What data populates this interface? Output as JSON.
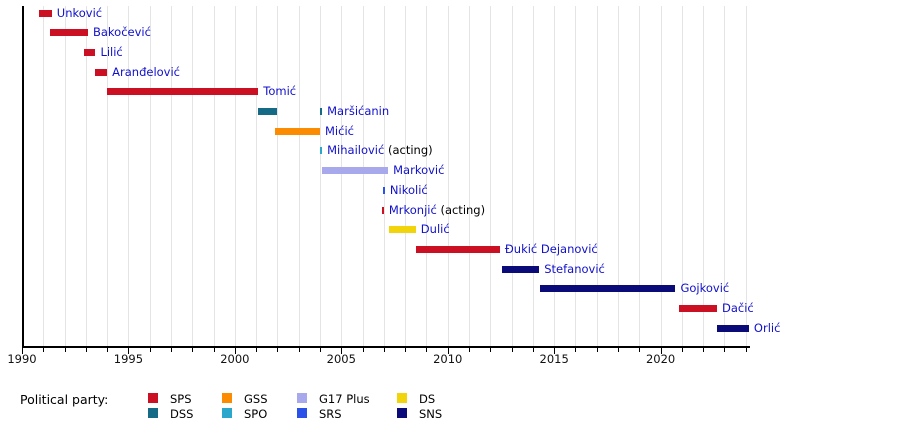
{
  "chart_data": {
    "type": "bar",
    "variant": "horizontal-timeline-gantt",
    "title": "",
    "xlabel": "",
    "ylabel": "",
    "xlim": [
      1990,
      2024.2
    ],
    "xticks_major": [
      1990,
      1995,
      2000,
      2005,
      2010,
      2015,
      2020
    ],
    "xtick_minor_step": 1,
    "grid": "vertical yearly light-gray lines",
    "legend_position": "bottom",
    "rows": [
      {
        "name": "Unković",
        "party": "SPS",
        "segments": [
          [
            1990.8,
            1991.4
          ]
        ]
      },
      {
        "name": "Bakočević",
        "party": "SPS",
        "segments": [
          [
            1991.3,
            1993.1
          ]
        ]
      },
      {
        "name": "Lilić",
        "party": "SPS",
        "segments": [
          [
            1992.9,
            1993.45
          ]
        ]
      },
      {
        "name": "Aranđelović",
        "party": "SPS",
        "segments": [
          [
            1993.45,
            1994.0
          ]
        ]
      },
      {
        "name": "Tomić",
        "party": "SPS",
        "segments": [
          [
            1994.0,
            2001.1
          ]
        ]
      },
      {
        "name": "Maršićanin",
        "party": "DSS",
        "segments": [
          [
            2001.1,
            2002.0
          ],
          [
            2004.0,
            2004.1
          ]
        ]
      },
      {
        "name": "Mićić",
        "party": "GSS",
        "segments": [
          [
            2001.9,
            2004.0
          ]
        ]
      },
      {
        "name": "Mihailović",
        "suffix": " (acting)",
        "party": "SPO",
        "segments": [
          [
            2004.0,
            2004.1
          ]
        ]
      },
      {
        "name": "Marković",
        "party": "G17 Plus",
        "segments": [
          [
            2004.1,
            2007.2
          ]
        ]
      },
      {
        "name": "Nikolić",
        "party": "SRS",
        "segments": [
          [
            2006.95,
            2007.05
          ]
        ]
      },
      {
        "name": "Mrkonjić",
        "suffix": " (acting)",
        "party": "SPS",
        "segments": [
          [
            2006.9,
            2007.0
          ]
        ]
      },
      {
        "name": "Dulić",
        "party": "DS",
        "segments": [
          [
            2007.25,
            2008.5
          ]
        ]
      },
      {
        "name": "Đukić Dejanović",
        "party": "SPS",
        "segments": [
          [
            2008.5,
            2012.45
          ]
        ]
      },
      {
        "name": "Stefanović",
        "party": "SNS",
        "segments": [
          [
            2012.55,
            2014.3
          ]
        ]
      },
      {
        "name": "Gojković",
        "party": "SNS",
        "segments": [
          [
            2014.35,
            2020.7
          ]
        ]
      },
      {
        "name": "Dačić",
        "party": "SPS",
        "segments": [
          [
            2020.85,
            2022.65
          ]
        ]
      },
      {
        "name": "Orlić",
        "party": "SNS",
        "segments": [
          [
            2022.65,
            2024.15
          ]
        ]
      }
    ]
  },
  "parties": {
    "SPS": "#cc1023",
    "DSS": "#156b85",
    "GSS": "#fb8b00",
    "SPO": "#2ba7cc",
    "G17 Plus": "#a8a8ec",
    "SRS": "#2b52e8",
    "DS": "#f2d40c",
    "SNS": "#0a0a78"
  },
  "legend": {
    "title": "Political party:",
    "rows": [
      [
        "SPS",
        "GSS",
        "G17 Plus",
        "DS"
      ],
      [
        "DSS",
        "SPO",
        "SRS",
        "SNS"
      ]
    ]
  },
  "colors": {
    "name_label": "#1010cc",
    "acting_suffix": "#000000",
    "gridline": "#e4e4e4",
    "axis": "#000000"
  }
}
